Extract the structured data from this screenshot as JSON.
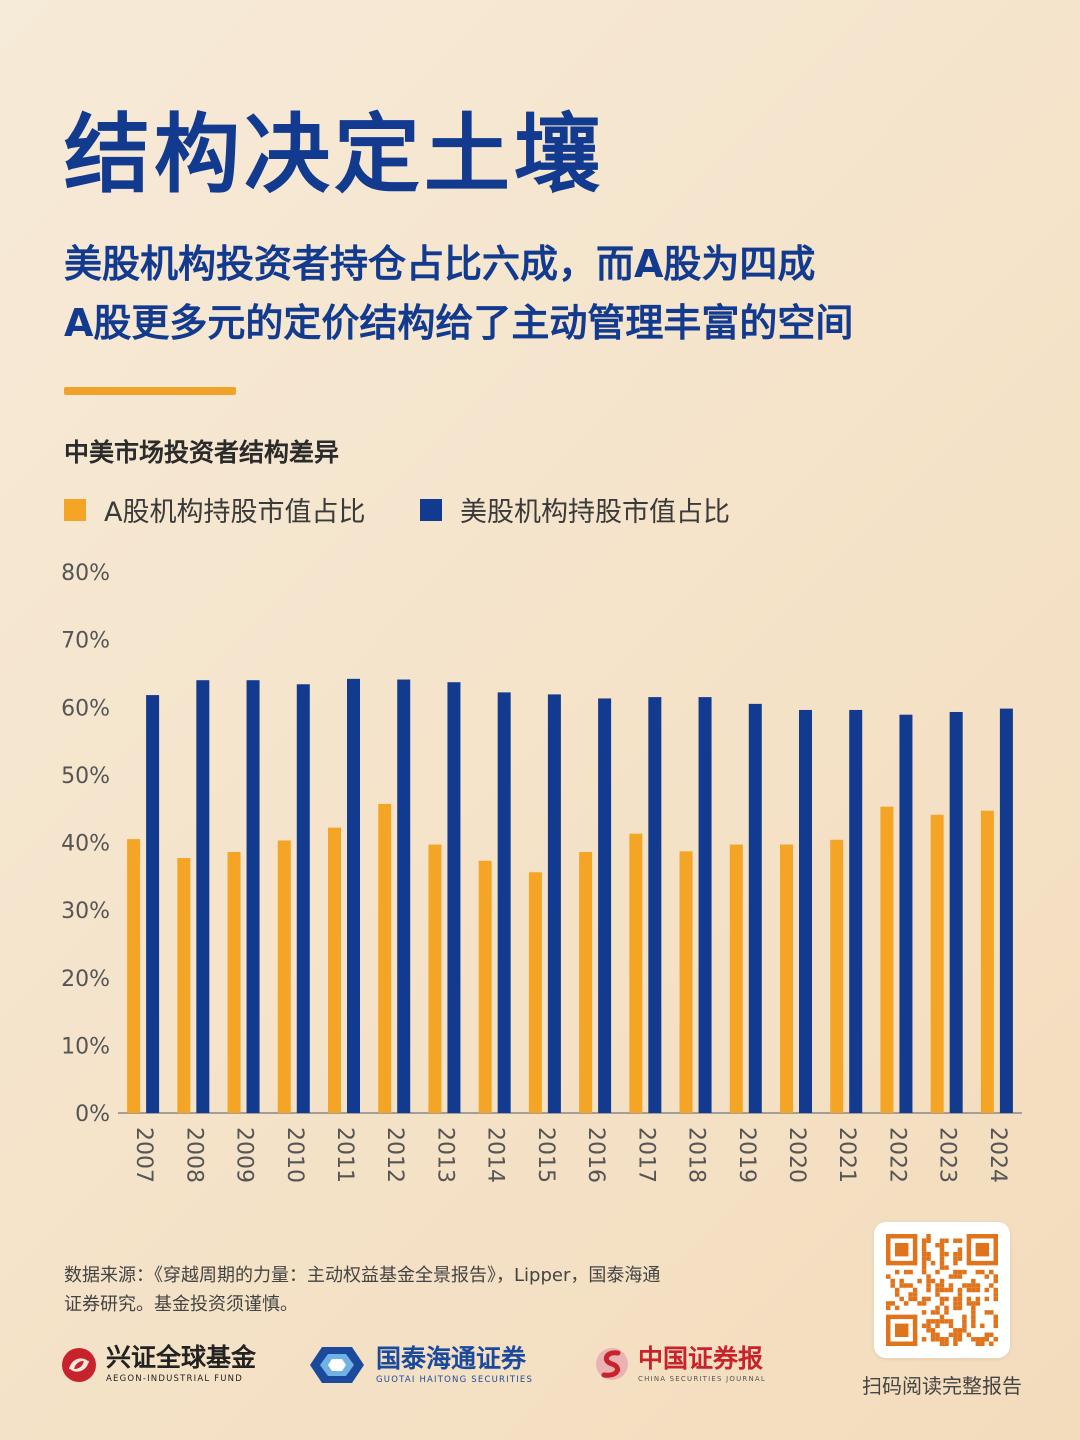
{
  "header": {
    "title": "结构决定土壤",
    "subtitle_line1": "美股机构投资者持仓占比六成，而A股为四成",
    "subtitle_line2": "A股更多元的定价结构给了主动管理丰富的空间"
  },
  "colors": {
    "accent_blue": "#123a8f",
    "accent_orange": "#f2a12b",
    "series_a": "#f5a525",
    "series_us": "#123a8f"
  },
  "chart_data": {
    "type": "bar",
    "title": "中美市场投资者结构差异",
    "categories": [
      "2007",
      "2008",
      "2009",
      "2010",
      "2011",
      "2012",
      "2013",
      "2014",
      "2015",
      "2016",
      "2017",
      "2018",
      "2019",
      "2020",
      "2021",
      "2022",
      "2023",
      "2024"
    ],
    "series": [
      {
        "name": "A股机构持股市值占比",
        "values": [
          40.5,
          37.7,
          38.6,
          40.3,
          42.2,
          45.7,
          39.7,
          37.3,
          35.6,
          38.6,
          41.3,
          38.7,
          39.7,
          39.7,
          40.4,
          45.3,
          44.1,
          44.7
        ]
      },
      {
        "name": "美股机构持股市值占比",
        "values": [
          61.8,
          64.0,
          64.0,
          63.4,
          64.2,
          64.1,
          63.7,
          62.2,
          61.9,
          61.3,
          61.5,
          61.5,
          60.5,
          59.6,
          59.6,
          58.9,
          59.3,
          59.8
        ]
      }
    ],
    "y_ticks": [
      "0%",
      "10%",
      "20%",
      "30%",
      "40%",
      "50%",
      "60%",
      "70%",
      "80%"
    ],
    "ylim": [
      0,
      80
    ],
    "legend_position": "top-left",
    "grid": false
  },
  "footer": {
    "source_line1": "数据来源：《穿越周期的力量：主动权益基金全景报告》，Lipper，国泰海通",
    "source_line2": "证券研究。基金投资须谨慎。",
    "qr_caption": "扫码阅读完整报告",
    "logos": {
      "aegon_cn": "兴证全球基金",
      "aegon_en": "AEGON-INDUSTRIAL FUND",
      "gtht_cn": "国泰海通证券",
      "gtht_en": "GUOTAI HAITONG SECURITIES",
      "csj_cn": "中国证券报",
      "csj_en": "CHINA SECURITIES JOURNAL"
    }
  }
}
